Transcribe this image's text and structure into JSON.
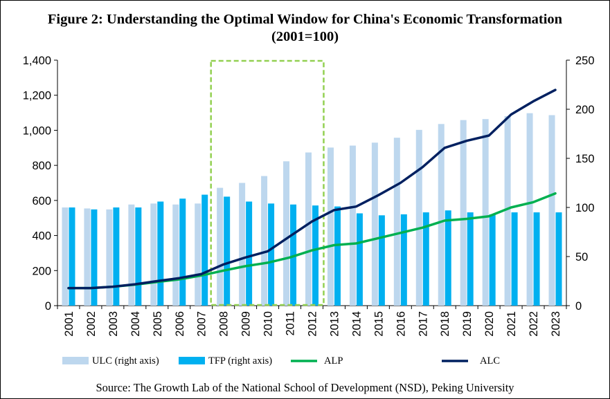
{
  "title_line1": "Figure 2: Understanding the Optimal Window for China's Economic Transformation",
  "title_line2": "(2001=100)",
  "source": "Source: The Growth Lab of the National School of Development (NSD), Peking University",
  "chart_data": {
    "type": "bar+line",
    "categories": [
      "2001",
      "2002",
      "2003",
      "2004",
      "2005",
      "2006",
      "2007",
      "2008",
      "2009",
      "2010",
      "2011",
      "2012",
      "2013",
      "2014",
      "2015",
      "2016",
      "2017",
      "2018",
      "2019",
      "2020",
      "2021",
      "2022",
      "2023"
    ],
    "y_left": {
      "min": 0,
      "max": 1400,
      "ticks": [
        "0",
        "200",
        "400",
        "600",
        "800",
        "1,000",
        "1,200",
        "1,400"
      ]
    },
    "y_right": {
      "min": 0,
      "max": 250,
      "ticks": [
        "0",
        "50",
        "100",
        "150",
        "200",
        "250"
      ]
    },
    "highlight_window": {
      "from": "2008",
      "to": "2012"
    },
    "series": [
      {
        "name": "ULC (right axis)",
        "kind": "bar",
        "axis": "right",
        "color": "#bdd7ee",
        "values": [
          100,
          99,
          98,
          103,
          104,
          103,
          104,
          120,
          125,
          132,
          147,
          156,
          161,
          163,
          166,
          171,
          179,
          185,
          189,
          190,
          193,
          196,
          194
        ]
      },
      {
        "name": "TFP (right axis)",
        "kind": "bar",
        "axis": "right",
        "color": "#00b0f0",
        "values": [
          100,
          98,
          100,
          100,
          106,
          109,
          113,
          111,
          106,
          104,
          103,
          102,
          101,
          94,
          92,
          93,
          95,
          97,
          95,
          93,
          95,
          95,
          95
        ]
      },
      {
        "name": "ALP",
        "kind": "line",
        "axis": "left",
        "color": "#00b050",
        "values": [
          100,
          100,
          108,
          120,
          135,
          150,
          172,
          200,
          225,
          245,
          275,
          315,
          345,
          355,
          385,
          415,
          445,
          485,
          495,
          510,
          560,
          590,
          640
        ]
      },
      {
        "name": "ALC",
        "kind": "line",
        "axis": "left",
        "color": "#002060",
        "values": [
          100,
          100,
          108,
          122,
          140,
          157,
          180,
          235,
          275,
          310,
          395,
          480,
          545,
          565,
          630,
          700,
          790,
          900,
          940,
          970,
          1090,
          1165,
          1230
        ]
      }
    ]
  }
}
